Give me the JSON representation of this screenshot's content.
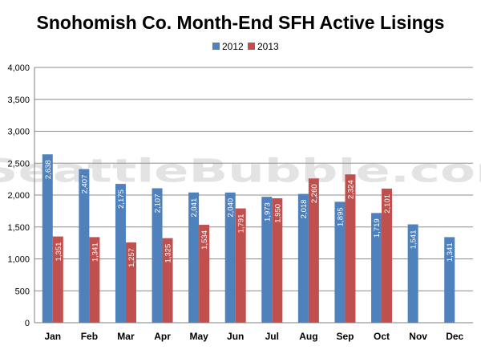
{
  "chart_data": {
    "type": "bar",
    "title": "Snohomish Co. Month-End SFH Active Lisings",
    "watermark": "SeattleBubble.com",
    "categories": [
      "Jan",
      "Feb",
      "Mar",
      "Apr",
      "May",
      "Jun",
      "Jul",
      "Aug",
      "Sep",
      "Oct",
      "Nov",
      "Dec"
    ],
    "series": [
      {
        "name": "2012",
        "color": "#4F81BD",
        "values": [
          2638,
          2407,
          2175,
          2107,
          2041,
          2040,
          1973,
          2018,
          1895,
          1719,
          1541,
          1341
        ]
      },
      {
        "name": "2013",
        "color": "#C0504D",
        "values": [
          1351,
          1341,
          1257,
          1325,
          1534,
          1791,
          1950,
          2260,
          2324,
          2101,
          null,
          null
        ]
      }
    ],
    "ylim": [
      0,
      4000
    ],
    "yticks": [
      "0",
      "500",
      "1,000",
      "1,500",
      "2,000",
      "2,500",
      "3,000",
      "3,500",
      "4,000"
    ],
    "xlabel": "",
    "ylabel": "",
    "grid": true,
    "legend_position": "top"
  }
}
